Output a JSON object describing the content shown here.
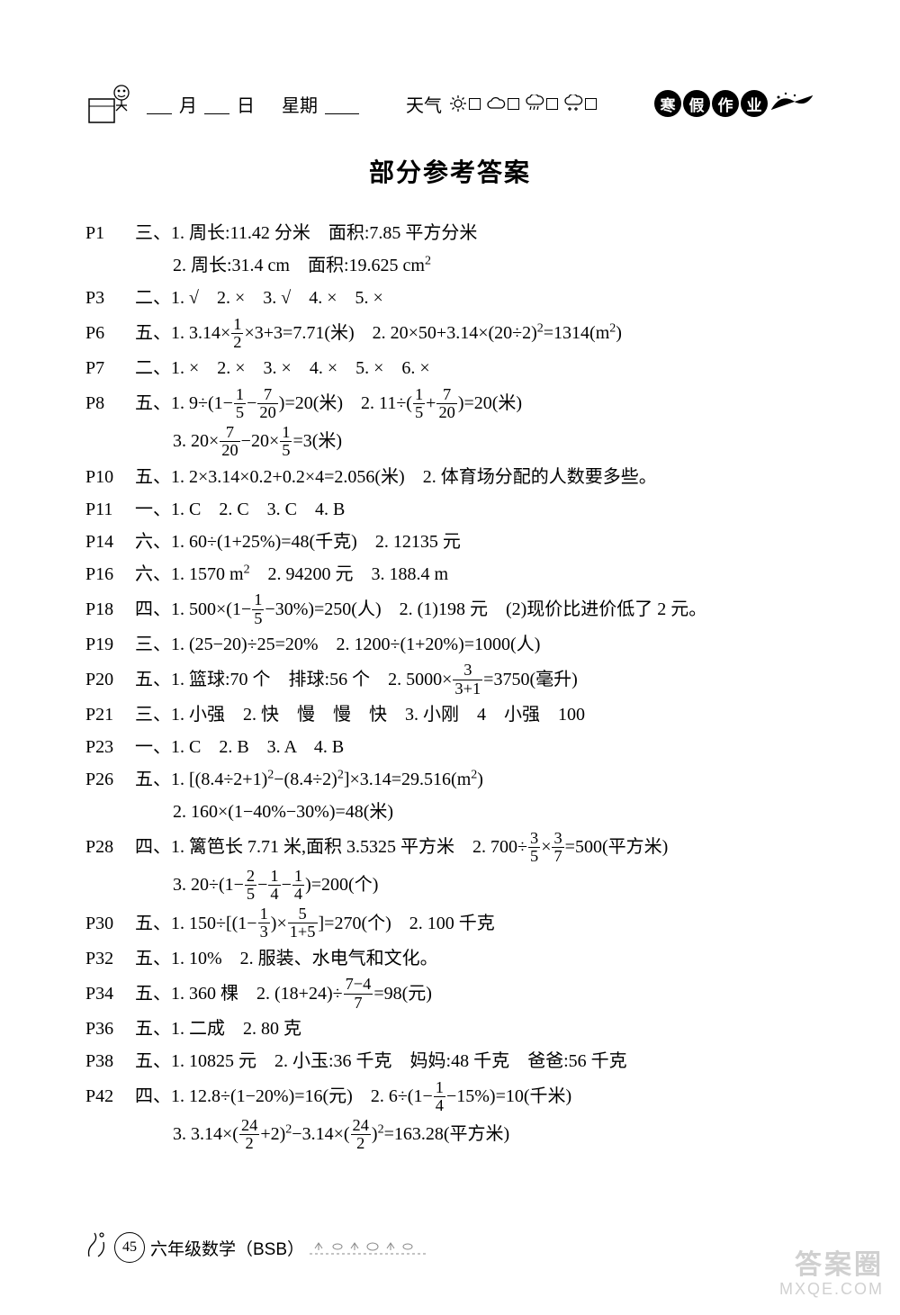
{
  "header": {
    "month_label": "月",
    "day_label": "日",
    "weekday_label": "星期",
    "weather_label": "天气",
    "badges": [
      "寒",
      "假",
      "作",
      "业"
    ]
  },
  "title": "部分参考答案",
  "answers": [
    {
      "p": "P1",
      "sec": "三、",
      "items": [
        "1. 周长:11.42 分米　面积:7.85 平方分米",
        "2. 周长:31.4 cm　面积:19.625 cm²"
      ]
    },
    {
      "p": "P3",
      "sec": "二、",
      "line": "1. √　2. ×　3. √　4. ×　5. ×"
    },
    {
      "p": "P6",
      "sec": "五、",
      "html": "1. 3.14×{F:1/2}×3+3=7.71(米)　2. 20×50+3.14×(20÷2)²=1314(m²)"
    },
    {
      "p": "P7",
      "sec": "二、",
      "line": "1. ×　2. ×　3. ×　4. ×　5. ×　6. ×"
    },
    {
      "p": "P8",
      "sec": "五、",
      "htmls": [
        "1. 9÷(1−{F:1/5}−{F:7/20})=20(米)　2. 11÷({F:1/5}+{F:7/20})=20(米)",
        "3. 20×{F:7/20}−20×{F:1/5}=3(米)"
      ]
    },
    {
      "p": "P10",
      "sec": "五、",
      "line": "1. 2×3.14×0.2+0.2×4=2.056(米)　2. 体育场分配的人数要多些。"
    },
    {
      "p": "P11",
      "sec": "一、",
      "line": "1. C　2. C　3. C　4. B"
    },
    {
      "p": "P14",
      "sec": "六、",
      "line": "1. 60÷(1+25%)=48(千克)　2. 12135 元"
    },
    {
      "p": "P16",
      "sec": "六、",
      "line": "1. 1570 m²　2. 94200 元　3. 188.4 m"
    },
    {
      "p": "P18",
      "sec": "四、",
      "html": "1. 500×(1−{F:1/5}−30%)=250(人)　2. (1)198 元　(2)现价比进价低了 2 元。"
    },
    {
      "p": "P19",
      "sec": "三、",
      "line": "1. (25−20)÷25=20%　2. 1200÷(1+20%)=1000(人)"
    },
    {
      "p": "P20",
      "sec": "五、",
      "html": "1. 篮球:70 个　排球:56 个　2. 5000×{F:3/3+1}=3750(毫升)"
    },
    {
      "p": "P21",
      "sec": "三、",
      "line": "1. 小强　2. 快　慢　慢　快　3. 小刚　4　小强　100"
    },
    {
      "p": "P23",
      "sec": "一、",
      "line": "1. C　2. B　3. A　4. B"
    },
    {
      "p": "P26",
      "sec": "五、",
      "items": [
        "1. [(8.4÷2+1)²−(8.4÷2)²]×3.14=29.516(m²)",
        "2. 160×(1−40%−30%)=48(米)"
      ]
    },
    {
      "p": "P28",
      "sec": "四、",
      "htmls": [
        "1. 篱笆长 7.71 米,面积 3.5325 平方米　2. 700÷{F:3/5}×{F:3/7}=500(平方米)",
        "3. 20÷(1−{F:2/5}−{F:1/4}−{F:1/4})=200(个)"
      ]
    },
    {
      "p": "P30",
      "sec": "五、",
      "html": "1. 150÷[(1−{F:1/3})×{F:5/1+5}]=270(个)　2. 100 千克"
    },
    {
      "p": "P32",
      "sec": "五、",
      "line": "1. 10%　2. 服装、水电气和文化。"
    },
    {
      "p": "P34",
      "sec": "五、",
      "html": "1. 360 棵　2. (18+24)÷{F:7−4/7}=98(元)"
    },
    {
      "p": "P36",
      "sec": "五、",
      "line": "1. 二成　2. 80 克"
    },
    {
      "p": "P38",
      "sec": "五、",
      "line": "1. 10825 元　2. 小玉:36 千克　妈妈:48 千克　爸爸:56 千克"
    },
    {
      "p": "P42",
      "sec": "四、",
      "htmls": [
        "1. 12.8÷(1−20%)=16(元)　2. 6÷(1−{F:1/4}−15%)=10(千米)",
        "3. 3.14×({F:24/2}+2)²−3.14×({F:24/2})²=163.28(平方米)"
      ]
    }
  ],
  "footer": {
    "page_number": "45",
    "label": "六年级数学（BSB）"
  },
  "watermark": {
    "line1": "答案圈",
    "line2": "MXQE.COM"
  },
  "colors": {
    "text": "#000000",
    "bg": "#ffffff",
    "wm": "rgba(120,120,120,0.35)"
  }
}
